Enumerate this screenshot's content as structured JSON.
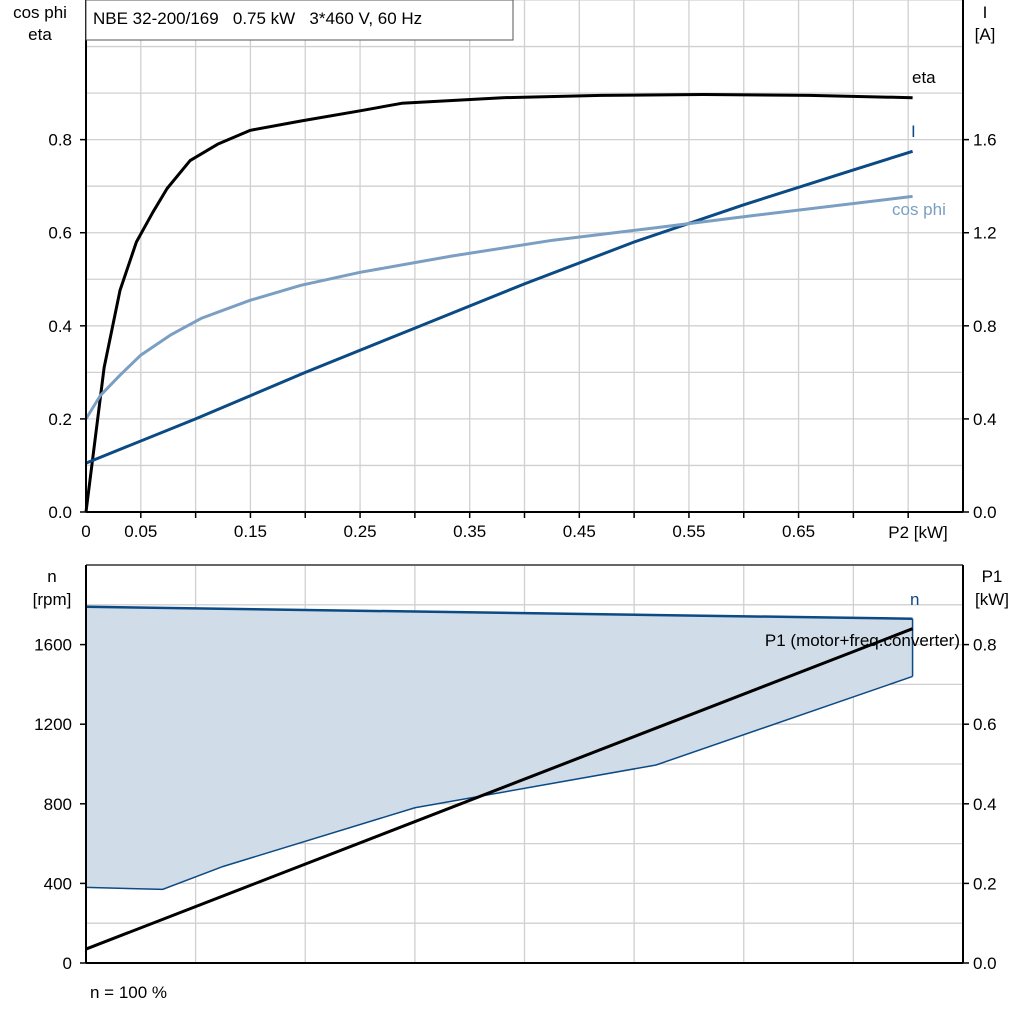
{
  "chart_data": [
    {
      "type": "line",
      "title": "NBE 32-200/169   0.75 kW   3*460 V, 60 Hz",
      "xlabel": "P2 [kW]",
      "ylabel_left": [
        "cos phi",
        "eta"
      ],
      "ylabel_right": [
        "I",
        "[A]"
      ],
      "xlim": [
        0,
        0.8
      ],
      "ylim_left": [
        0,
        1.1
      ],
      "ylim_right": [
        0,
        2.2
      ],
      "x_ticks": [
        "0",
        "0.05",
        "0.15",
        "0.25",
        "0.35",
        "0.45",
        "0.55",
        "0.65"
      ],
      "x_tick_values": [
        0,
        0.05,
        0.15,
        0.25,
        0.35,
        0.45,
        0.55,
        0.65
      ],
      "y_ticks_left": [
        "0.0",
        "0.2",
        "0.4",
        "0.6",
        "0.8"
      ],
      "y_ticks_right": [
        "0.0",
        "0.4",
        "0.8",
        "1.2",
        "1.6"
      ],
      "grid": true,
      "series": [
        {
          "name": "eta",
          "axis": "left",
          "color": "#000000",
          "x": [
            0,
            0.0165,
            0.031,
            0.046,
            0.061,
            0.074,
            0.095,
            0.12,
            0.15,
            0.196,
            0.25,
            0.288,
            0.38,
            0.47,
            0.563,
            0.66,
            0.754
          ],
          "y": [
            0,
            0.31,
            0.476,
            0.58,
            0.644,
            0.695,
            0.755,
            0.79,
            0.82,
            0.84,
            0.862,
            0.878,
            0.89,
            0.895,
            0.897,
            0.895,
            0.89
          ]
        },
        {
          "name": "I",
          "axis": "right",
          "color": "#0b4a84",
          "x": [
            0,
            0.1,
            0.2,
            0.3,
            0.4,
            0.5,
            0.6,
            0.7,
            0.754
          ],
          "y": [
            0.21,
            0.4,
            0.6,
            0.79,
            0.98,
            1.16,
            1.32,
            1.47,
            1.55
          ]
        },
        {
          "name": "cos phi",
          "axis": "left",
          "color": "#7a9fc2",
          "x": [
            0,
            0.013,
            0.031,
            0.05,
            0.077,
            0.105,
            0.15,
            0.196,
            0.25,
            0.334,
            0.426,
            0.517,
            0.609,
            0.754
          ],
          "y": [
            0.2,
            0.25,
            0.294,
            0.337,
            0.38,
            0.416,
            0.455,
            0.487,
            0.515,
            0.55,
            0.584,
            0.61,
            0.637,
            0.678
          ]
        }
      ]
    },
    {
      "type": "area",
      "xlim": [
        0,
        0.8
      ],
      "ylabel_left": [
        "n",
        "[rpm]"
      ],
      "ylabel_right": [
        "P1",
        "[kW]"
      ],
      "ylim_left": [
        0,
        2000
      ],
      "ylim_right": [
        0,
        1.0
      ],
      "y_ticks_left": [
        "0",
        "400",
        "800",
        "1200",
        "1600"
      ],
      "y_ticks_right": [
        "0.0",
        "0.2",
        "0.4",
        "0.6",
        "0.8"
      ],
      "grid": true,
      "note": "n = 100 %",
      "series": [
        {
          "name": "n",
          "axis": "left",
          "color": "#0b4a84",
          "fill": "#d0dce8",
          "upper_x": [
            0,
            0.754
          ],
          "upper_y": [
            1790,
            1730
          ],
          "lower_x": [
            0,
            0.07,
            0.125,
            0.3,
            0.52,
            0.754
          ],
          "lower_y": [
            380,
            370,
            485,
            780,
            995,
            1440
          ]
        },
        {
          "name": "P1 (motor+freq.converter)",
          "axis": "right",
          "color": "#000000",
          "x": [
            0,
            0.754
          ],
          "y": [
            0.035,
            0.84
          ]
        }
      ]
    }
  ]
}
